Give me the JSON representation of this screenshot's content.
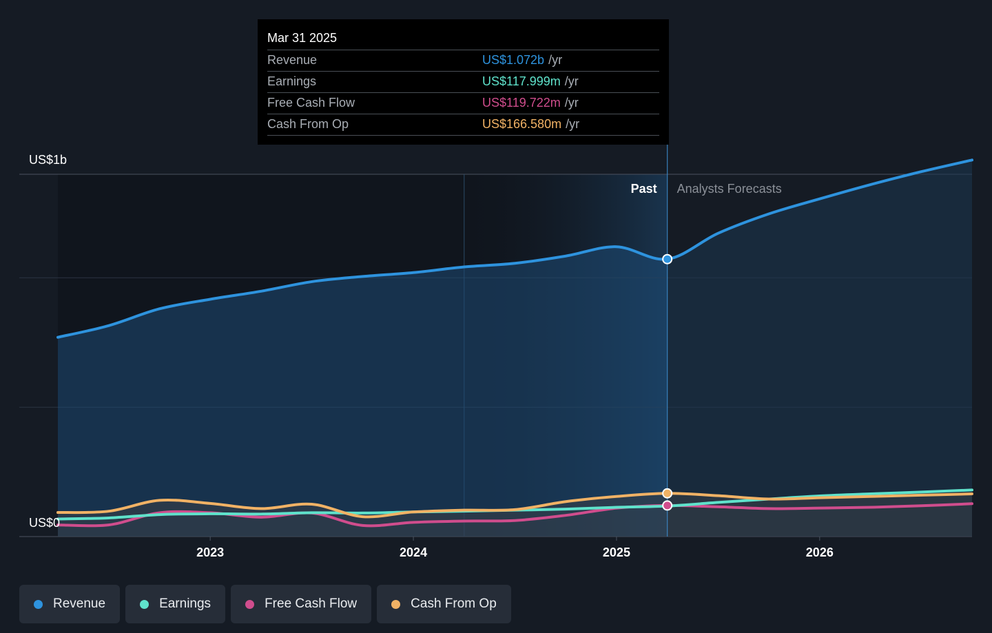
{
  "tooltip": {
    "date": "Mar 31 2025",
    "rows": [
      {
        "label": "Revenue",
        "value": "US$1.072b",
        "unit": "/yr",
        "color": "#2e93de"
      },
      {
        "label": "Earnings",
        "value": "US$117.999m",
        "unit": "/yr",
        "color": "#5fe2cb"
      },
      {
        "label": "Free Cash Flow",
        "value": "US$119.722m",
        "unit": "/yr",
        "color": "#d04d8d"
      },
      {
        "label": "Cash From Op",
        "value": "US$166.580m",
        "unit": "/yr",
        "color": "#f1b265"
      }
    ]
  },
  "legend": [
    {
      "label": "Revenue",
      "color": "#2e93de"
    },
    {
      "label": "Earnings",
      "color": "#5fe2cb"
    },
    {
      "label": "Free Cash Flow",
      "color": "#d04d8d"
    },
    {
      "label": "Cash From Op",
      "color": "#f1b265"
    }
  ],
  "chart_data": {
    "type": "area",
    "y_top_label": "US$1b",
    "y_bottom_label": "US$0",
    "ylim": [
      0,
      1400
    ],
    "x_ticks": [
      2023,
      2024,
      2025,
      2026
    ],
    "xlim": [
      2022.25,
      2026.75
    ],
    "past_label": "Past",
    "forecast_label": "Analysts Forecasts",
    "divider_x": 2025.25,
    "grid": true,
    "series": [
      {
        "name": "Revenue",
        "color": "#2e93de",
        "x": [
          2022.25,
          2022.5,
          2022.75,
          2023.0,
          2023.25,
          2023.5,
          2023.75,
          2024.0,
          2024.25,
          2024.5,
          2024.75,
          2025.0,
          2025.25,
          2025.5,
          2025.75,
          2026.0,
          2026.25,
          2026.5,
          2026.75
        ],
        "y": [
          770,
          815,
          880,
          917,
          948,
          985,
          1005,
          1020,
          1042,
          1056,
          1084,
          1120,
          1072,
          1172,
          1247,
          1305,
          1360,
          1410,
          1455
        ]
      },
      {
        "name": "Earnings",
        "color": "#5fe2cb",
        "x": [
          2022.25,
          2022.5,
          2022.75,
          2023.0,
          2023.25,
          2023.5,
          2023.75,
          2024.0,
          2024.25,
          2024.5,
          2024.75,
          2025.0,
          2025.25,
          2025.5,
          2025.75,
          2026.0,
          2026.25,
          2026.5,
          2026.75
        ],
        "y": [
          68,
          72,
          85,
          88,
          87,
          92,
          91,
          95,
          98,
          102,
          106,
          113,
          118,
          132,
          145,
          157,
          165,
          172,
          180
        ]
      },
      {
        "name": "Free Cash Flow",
        "color": "#d04d8d",
        "x": [
          2022.25,
          2022.5,
          2022.75,
          2023.0,
          2023.25,
          2023.5,
          2023.75,
          2024.0,
          2024.25,
          2024.5,
          2024.75,
          2025.0,
          2025.25,
          2025.5,
          2025.75,
          2026.0,
          2026.25,
          2026.5,
          2026.75
        ],
        "y": [
          45,
          45,
          92,
          92,
          75,
          91,
          43,
          55,
          60,
          62,
          82,
          110,
          120,
          115,
          108,
          110,
          113,
          119,
          127
        ]
      },
      {
        "name": "Cash From Op",
        "color": "#f1b265",
        "x": [
          2022.25,
          2022.5,
          2022.75,
          2023.0,
          2023.25,
          2023.5,
          2023.75,
          2024.0,
          2024.25,
          2024.5,
          2024.75,
          2025.0,
          2025.25,
          2025.5,
          2025.75,
          2026.0,
          2026.25,
          2026.5,
          2026.75
        ],
        "y": [
          93,
          98,
          140,
          128,
          108,
          125,
          77,
          95,
          102,
          104,
          135,
          155,
          167,
          158,
          145,
          150,
          155,
          160,
          165
        ]
      }
    ]
  }
}
